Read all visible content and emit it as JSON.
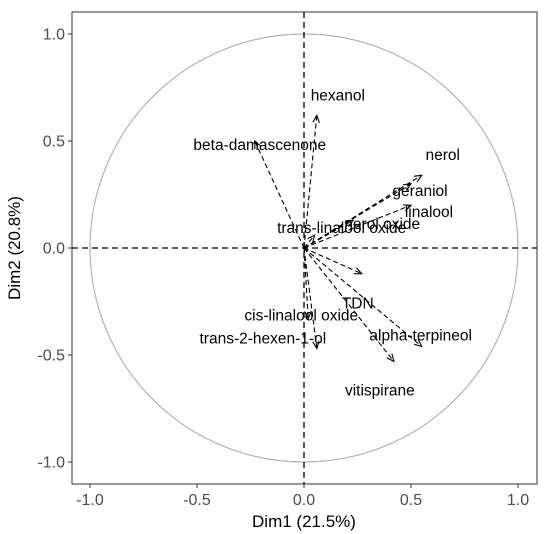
{
  "chart_data": {
    "type": "scatter",
    "subtype": "pca-variable-correlation-circle",
    "title": "",
    "xlabel": "Dim1 (21.5%)",
    "ylabel": "Dim2 (20.8%)",
    "xlim": [
      -1.1,
      1.1
    ],
    "ylim": [
      -1.1,
      1.1
    ],
    "xticks": [
      -1.0,
      -0.5,
      0.0,
      0.5,
      1.0
    ],
    "yticks": [
      -1.0,
      -0.5,
      0.0,
      0.5,
      1.0
    ],
    "xtick_labels": [
      "-1.0",
      "-0.5",
      "0.0",
      "0.5",
      "1.0"
    ],
    "ytick_labels": [
      "-1.0",
      "-0.5",
      "0.0",
      "0.5",
      "1.0"
    ],
    "grid": false,
    "unit_circle": true,
    "arrow_style": "dashed",
    "colors": {
      "circle": "#b3b3b3",
      "arrow": "#000000",
      "axis": "#333333",
      "text": "#000000"
    },
    "variables": [
      {
        "name": "hexanol",
        "x": 0.06,
        "y": 0.62
      },
      {
        "name": "beta-damascenone",
        "x": -0.23,
        "y": 0.5
      },
      {
        "name": "nerol",
        "x": 0.55,
        "y": 0.34
      },
      {
        "name": "geraniol",
        "x": 0.5,
        "y": 0.3
      },
      {
        "name": "linalool",
        "x": 0.5,
        "y": 0.2
      },
      {
        "name": "nerol oxide",
        "x": 0.23,
        "y": 0.13
      },
      {
        "name": "trans-linalool oxide",
        "x": 0.05,
        "y": 0.06
      },
      {
        "name": "TDN",
        "x": 0.27,
        "y": -0.12
      },
      {
        "name": "cis-linalool oxide",
        "x": 0.02,
        "y": -0.33
      },
      {
        "name": "trans-2-hexen-1-ol",
        "x": 0.06,
        "y": -0.47
      },
      {
        "name": "alpha-terpineol",
        "x": 0.55,
        "y": -0.46
      },
      {
        "name": "vitispirane",
        "x": 0.42,
        "y": -0.53
      }
    ]
  }
}
